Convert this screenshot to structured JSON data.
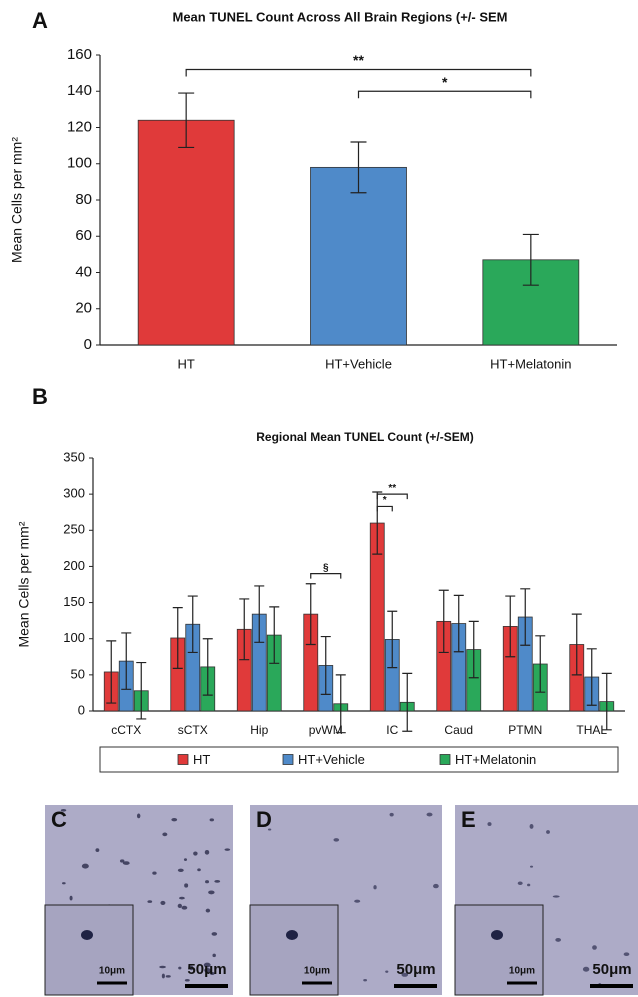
{
  "chart_data": [
    {
      "type": "bar",
      "panel_label": "A",
      "title": "Mean TUNEL Count Across All Brain Regions (+/- SEM",
      "y_label": "Mean Cells per mm²",
      "categories": [
        "HT",
        "HT+Vehicle",
        "HT+Melatonin"
      ],
      "values": [
        124,
        98,
        47
      ],
      "errors": [
        15,
        14,
        14
      ],
      "colors": [
        "#e03a3a",
        "#4f8ac9",
        "#2aa85a"
      ],
      "ylim": [
        0,
        160
      ],
      "yticks": [
        0,
        20,
        40,
        60,
        80,
        100,
        120,
        140,
        160
      ],
      "annotations": [
        {
          "text": "**",
          "between": [
            "HT",
            "HT+Melatonin"
          ],
          "y": 152
        },
        {
          "text": "*",
          "between": [
            "HT+Vehicle",
            "HT+Melatonin"
          ],
          "y": 140
        }
      ]
    },
    {
      "type": "grouped_bar",
      "panel_label": "B",
      "title": "Regional Mean TUNEL Count (+/-SEM)",
      "y_label": "Mean Cells per mm²",
      "categories": [
        "cCTX",
        "sCTX",
        "Hip",
        "pvWM",
        "IC",
        "Caud",
        "PTMN",
        "THAL"
      ],
      "series": [
        {
          "name": "HT",
          "color": "#e03a3a",
          "values": [
            54,
            101,
            113,
            134,
            260,
            124,
            117,
            92
          ],
          "errors": [
            43,
            42,
            42,
            42,
            43,
            43,
            42,
            42
          ]
        },
        {
          "name": "HT+Vehicle",
          "color": "#4f8ac9",
          "values": [
            69,
            120,
            134,
            63,
            99,
            121,
            130,
            47
          ],
          "errors": [
            39,
            39,
            39,
            40,
            39,
            39,
            39,
            39
          ]
        },
        {
          "name": "HT+Melatonin",
          "color": "#2aa85a",
          "values": [
            28,
            61,
            105,
            10,
            12,
            85,
            65,
            13
          ],
          "errors": [
            39,
            39,
            39,
            40,
            40,
            39,
            39,
            39
          ]
        }
      ],
      "ylim": [
        0,
        350
      ],
      "yticks": [
        0,
        50,
        100,
        150,
        200,
        250,
        300,
        350
      ],
      "legend": "bottom",
      "annotations": [
        {
          "text": "§",
          "category": "pvWM",
          "between": [
            "HT",
            "HT+Melatonin"
          ],
          "y": 190
        },
        {
          "text": "*",
          "category": "IC",
          "between": [
            "HT",
            "HT+Vehicle"
          ],
          "y": 283
        },
        {
          "text": "**",
          "category": "IC",
          "between": [
            "HT",
            "HT+Melatonin"
          ],
          "y": 300
        }
      ]
    }
  ],
  "micrographs": [
    {
      "label": "C",
      "inset_scale_bar": "10μm",
      "scale_bar": "50μm"
    },
    {
      "label": "D",
      "inset_scale_bar": "10μm",
      "scale_bar": "50μm"
    },
    {
      "label": "E",
      "inset_scale_bar": "10μm",
      "scale_bar": "50μm"
    }
  ]
}
